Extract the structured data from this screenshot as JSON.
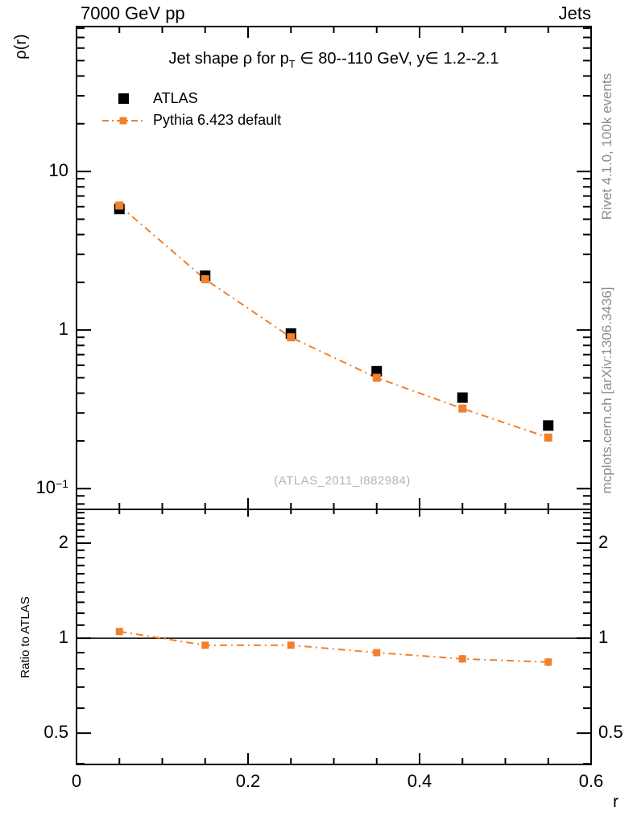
{
  "header": {
    "left_label": "7000 GeV pp",
    "right_label": "Jets"
  },
  "main_panel": {
    "title": {
      "pre": "Jet shape ρ for p",
      "sub": "T",
      "post": " ∈ 80--110 GeV, y∈ 1.2--2.1"
    },
    "ylabel": "ρ(r)",
    "watermark": "(ATLAS_2011_I882984)"
  },
  "ratio_panel": {
    "ylabel": "Ratio to ATLAS"
  },
  "side_notes": {
    "top": "Rivet 4.1.0,  100k events",
    "bottom": "mcplots.cern.ch [arXiv:1306.3436]"
  },
  "colors": {
    "atlas": "#000000",
    "pythia": "#f0802c",
    "axis": "#000000",
    "side_text": "#8c8c8c",
    "watermark": "#b5b5b5",
    "background": "#ffffff"
  },
  "chart_data": {
    "type": "scatter",
    "title": "Jet shape ρ for p_T ∈ 80--110 GeV, y ∈ 1.2--2.1",
    "xlabel": "r",
    "ylabel": "ρ(r)",
    "ratio_ylabel": "Ratio to ATLAS",
    "grid": false,
    "legend_position": "top-left",
    "x": [
      0.05,
      0.15,
      0.25,
      0.35,
      0.45,
      0.55
    ],
    "series": [
      {
        "name": "ATLAS",
        "role": "reference-data",
        "marker": "filled-square",
        "color": "#000000",
        "values": [
          5.8,
          2.2,
          0.95,
          0.55,
          0.375,
          0.25
        ]
      },
      {
        "name": "Pythia 6.423 default",
        "role": "mc-prediction",
        "marker": "filled-square",
        "line": "dash-dot",
        "color": "#f0802c",
        "values": [
          6.1,
          2.09,
          0.9,
          0.5,
          0.32,
          0.21
        ]
      }
    ],
    "ratio": {
      "name": "Pythia 6.423 default / ATLAS",
      "values": [
        1.05,
        0.95,
        0.95,
        0.9,
        0.86,
        0.84
      ],
      "errors": [
        0.012,
        0.015,
        0.02,
        0.02,
        0.025,
        0.025
      ]
    },
    "axes": {
      "x": {
        "min": 0,
        "max": 0.6,
        "minor_step": 0.05,
        "label": "r",
        "majors": [
          {
            "v": 0,
            "label": "0"
          },
          {
            "v": 0.2,
            "label": "0.2"
          },
          {
            "v": 0.4,
            "label": "0.4"
          },
          {
            "v": 0.6,
            "label": "0.6"
          }
        ]
      },
      "y_main": {
        "scale": "log",
        "min": 0.074,
        "max": 82,
        "majors": [
          {
            "v": 10,
            "label": "10"
          },
          {
            "v": 1,
            "label": "1"
          },
          {
            "v": 0.1,
            "label": "10",
            "sup": "−1"
          }
        ]
      },
      "y_ratio": {
        "scale": "log",
        "min": 0.398,
        "max": 2.56,
        "minor_step": 0.1,
        "ref_line": 1,
        "majors": [
          {
            "v": 2,
            "label": "2"
          },
          {
            "v": 1,
            "label": "1"
          },
          {
            "v": 0.5,
            "label": "0.5"
          }
        ]
      }
    }
  }
}
